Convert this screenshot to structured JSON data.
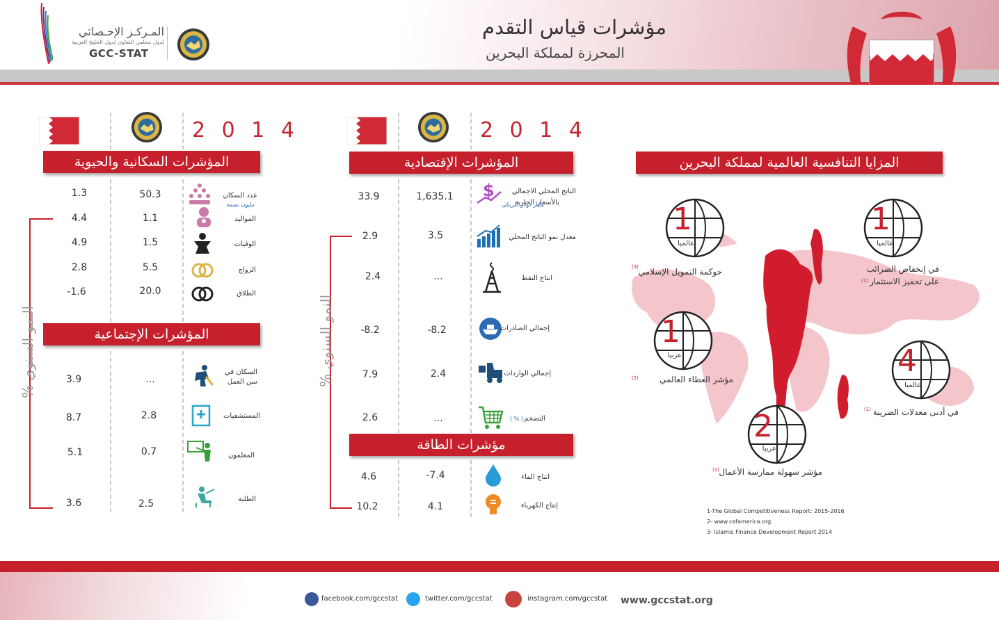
{
  "header": {
    "title": "مؤشرات قياس التقدم",
    "subtitle": "المحرزة لمملكة البحرين",
    "logo_arabic": "المـركـز الإحـصائي",
    "logo_arabic_sub": "لدول مجلس التعاون لدول الخليج العربية",
    "logo_english": "GCC-STAT"
  },
  "year": "2 0 1 4",
  "population_section": {
    "title": "المؤشرات السكانية والحيوية",
    "rows": [
      {
        "label": "عدد السكان",
        "sublabel": "مليون نسمة",
        "gcc": "50.3",
        "bahrain": "1.3",
        "icon": "population-icon"
      },
      {
        "label": "المواليد",
        "gcc": "1.1",
        "bahrain": "4.4",
        "icon": "baby-icon"
      },
      {
        "label": "الوفيات",
        "gcc": "1.5",
        "bahrain": "4.9",
        "icon": "deaths-icon"
      },
      {
        "label": "الزواج",
        "gcc": "5.5",
        "bahrain": "2.8",
        "icon": "rings-icon"
      },
      {
        "label": "الطلاق",
        "gcc": "20.0",
        "bahrain": "-1.6",
        "icon": "broken-rings-icon"
      }
    ]
  },
  "social_section": {
    "title": "المؤشرات الإجتماعية",
    "rows": [
      {
        "label": "السكان في",
        "label2": "سن العمل",
        "gcc": "...",
        "bahrain": "3.9",
        "icon": "worker-icon"
      },
      {
        "label": "المستشفيات",
        "gcc": "2.8",
        "bahrain": "8.7",
        "icon": "hospital-icon"
      },
      {
        "label": "المعلمون",
        "gcc": "0.7",
        "bahrain": "5.1",
        "icon": "teacher-icon"
      },
      {
        "label": "الطلبة",
        "gcc": "2.5",
        "bahrain": "3.6",
        "icon": "student-icon"
      }
    ]
  },
  "economic_section": {
    "title": "المؤشرات الإقتصادية",
    "rows": [
      {
        "label": "الناتج المحلي الاجمالي",
        "label2": "بالأسعار الجارية",
        "sublabel": "مليار دولار أمريكي",
        "gcc": "1,635.1",
        "bahrain": "33.9",
        "icon": "dollar-icon"
      },
      {
        "label": "معدل نمو الناتج المحلي",
        "gcc": "3.5",
        "bahrain": "2.9",
        "icon": "growth-chart-icon"
      },
      {
        "label": "انتاج النفط",
        "gcc": "...",
        "bahrain": "2.4",
        "icon": "oil-rig-icon"
      },
      {
        "label": "إجمالي الصادرات",
        "gcc": "-8.2",
        "bahrain": "-8.2",
        "icon": "ship-icon"
      },
      {
        "label": "إجمالي الواردات",
        "gcc": "2.4",
        "bahrain": "7.9",
        "icon": "forklift-icon"
      },
      {
        "label": "التضخم",
        "unit": "( % )",
        "gcc": "...",
        "bahrain": "2.6",
        "icon": "cart-icon"
      }
    ]
  },
  "energy_section": {
    "title": "مؤشرات الطاقة",
    "rows": [
      {
        "label": "انتاج الماء",
        "gcc": "-7.4",
        "bahrain": "4.6",
        "icon": "water-drop-icon"
      },
      {
        "label": "إنتاج الكهرباء",
        "gcc": "4.1",
        "bahrain": "10.2",
        "icon": "bulb-icon"
      }
    ]
  },
  "growth_label": "النمو السنوي %",
  "competitiveness": {
    "title": "المزايا التنافسية العالمية لمملكة البحرين",
    "badges": [
      {
        "rank": "1",
        "scope": "عالميا",
        "label": "في إنخفاض الضرائب",
        "label2": "على تحفيز الاستثمار",
        "ref": "(1)"
      },
      {
        "rank": "1",
        "scope": "عالميا",
        "label": "حوكمة التمويل الإسلامي",
        "ref": "(3)"
      },
      {
        "rank": "1",
        "scope": "عربيا",
        "label": "مؤشر العطاء العالمي",
        "ref": "(2)"
      },
      {
        "rank": "4",
        "scope": "عالميا",
        "label": "في أدنى معدلات الضريبة",
        "ref": "(1)"
      },
      {
        "rank": "2",
        "scope": "عربيا",
        "label": "مؤشر سهولة ممارسة الأعمال",
        "ref": "(1)"
      }
    ],
    "references": [
      "1-The Global Competitiveness Report: 2015-2016",
      "2- www.cafamerica.org",
      "3- Islamic Finance Development Report 2014"
    ]
  },
  "footer": {
    "facebook": "facebook.com/gccstat",
    "twitter": "twitter.com/gccstat",
    "instagram": "instagram.com/gccstat",
    "website": "www.gccstat.org"
  },
  "colors": {
    "accent": "#c6202d",
    "gray": "#9a9a9a"
  }
}
